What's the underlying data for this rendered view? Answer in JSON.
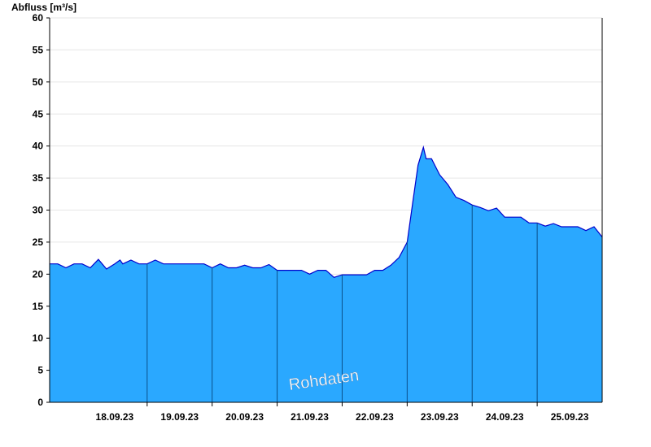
{
  "chart_data": {
    "type": "area",
    "ylabel": "Abfluss [m³/s]",
    "ylim": [
      0,
      60
    ],
    "yticks": [
      0,
      5,
      10,
      15,
      20,
      25,
      30,
      35,
      40,
      45,
      50,
      55,
      60
    ],
    "grid": true,
    "xlim": [
      "17.09.23 12:00",
      "25.09.23 24:00"
    ],
    "xticks": [
      {
        "label": "18.09.23",
        "pos": "18.09.23 12:00"
      },
      {
        "label": "19.09.23",
        "pos": "19.09.23 12:00"
      },
      {
        "label": "20.09.23",
        "pos": "20.09.23 12:00"
      },
      {
        "label": "21.09.23",
        "pos": "21.09.23 12:00"
      },
      {
        "label": "22.09.23",
        "pos": "22.09.23 12:00"
      },
      {
        "label": "23.09.23",
        "pos": "23.09.23 12:00"
      },
      {
        "label": "24.09.23",
        "pos": "24.09.23 12:00"
      },
      {
        "label": "25.09.23",
        "pos": "25.09.23 12:00"
      }
    ],
    "day_boundaries": [
      "18.09.23 24:00",
      "19.09.23 24:00",
      "20.09.23 24:00",
      "21.09.23 24:00",
      "22.09.23 24:00",
      "23.09.23 24:00",
      "24.09.23 24:00"
    ],
    "fill_color": "#2aa8ff",
    "line_color": "#0000cc",
    "annotation": "Rohdaten",
    "series": [
      {
        "x": [
          "17.09.23 12:00",
          "17.09.23 15:00",
          "17.09.23 18:00",
          "17.09.23 21:00",
          "18.09.23 00:00",
          "18.09.23 03:00",
          "18.09.23 06:00",
          "18.09.23 09:00",
          "18.09.23 12:00",
          "18.09.23 14:00",
          "18.09.23 15:00",
          "18.09.23 18:00",
          "18.09.23 21:00",
          "19.09.23 00:00",
          "19.09.23 03:00",
          "19.09.23 06:00",
          "19.09.23 09:00",
          "19.09.23 12:00",
          "19.09.23 15:00",
          "19.09.23 18:00",
          "19.09.23 21:00",
          "20.09.23 00:00",
          "20.09.23 03:00",
          "20.09.23 06:00",
          "20.09.23 09:00",
          "20.09.23 12:00",
          "20.09.23 15:00",
          "20.09.23 18:00",
          "20.09.23 21:00",
          "21.09.23 00:00",
          "21.09.23 03:00",
          "21.09.23 06:00",
          "21.09.23 09:00",
          "21.09.23 12:00",
          "21.09.23 15:00",
          "21.09.23 18:00",
          "21.09.23 21:00",
          "22.09.23 00:00",
          "22.09.23 03:00",
          "22.09.23 06:00",
          "22.09.23 09:00",
          "22.09.23 12:00",
          "22.09.23 15:00",
          "22.09.23 18:00",
          "22.09.23 21:00",
          "22.09.23 24:00",
          "23.09.23 02:00",
          "23.09.23 04:00",
          "23.09.23 06:00",
          "23.09.23 07:00",
          "23.09.23 09:00",
          "23.09.23 12:00",
          "23.09.23 15:00",
          "23.09.23 18:00",
          "23.09.23 21:00",
          "24.09.23 00:00",
          "24.09.23 03:00",
          "24.09.23 06:00",
          "24.09.23 09:00",
          "24.09.23 12:00",
          "24.09.23 15:00",
          "24.09.23 18:00",
          "24.09.23 21:00",
          "25.09.23 00:00",
          "25.09.23 03:00",
          "25.09.23 06:00",
          "25.09.23 09:00",
          "25.09.23 12:00",
          "25.09.23 15:00",
          "25.09.23 18:00",
          "25.09.23 21:00",
          "25.09.23 24:00"
        ],
        "values": [
          21.6,
          21.6,
          21.0,
          21.6,
          21.6,
          21.0,
          22.3,
          20.8,
          21.6,
          22.2,
          21.6,
          22.2,
          21.6,
          21.6,
          22.2,
          21.6,
          21.6,
          21.6,
          21.6,
          21.6,
          21.6,
          21.0,
          21.6,
          21.0,
          21.0,
          21.4,
          21.0,
          21.0,
          21.5,
          20.6,
          20.6,
          20.6,
          20.6,
          20.0,
          20.6,
          20.6,
          19.5,
          19.9,
          19.9,
          19.9,
          19.9,
          20.6,
          20.6,
          21.4,
          22.6,
          25.0,
          31.0,
          37.0,
          39.8,
          38.0,
          38.0,
          35.5,
          34.0,
          32.0,
          31.5,
          30.8,
          30.4,
          29.9,
          30.3,
          28.9,
          28.9,
          28.9,
          28.0,
          28.0,
          27.5,
          27.9,
          27.4,
          27.4,
          27.4,
          26.8,
          27.4,
          25.8
        ]
      }
    ]
  }
}
